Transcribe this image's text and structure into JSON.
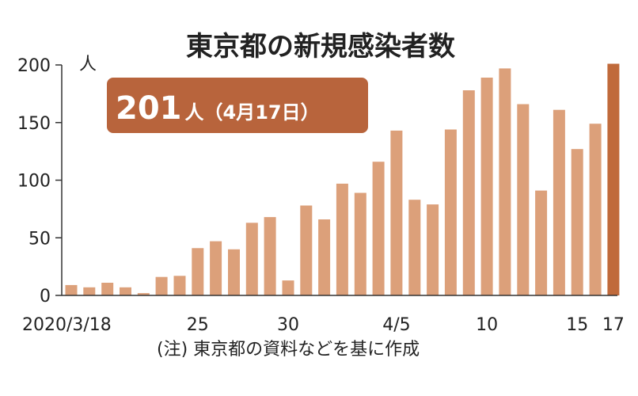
{
  "chart_data": {
    "type": "bar",
    "title": "東京都の新規感染者数",
    "unit": "人",
    "ylim": [
      0,
      200
    ],
    "yticks": [
      0,
      50,
      100,
      150,
      200
    ],
    "grid": false,
    "values": [
      9,
      7,
      11,
      7,
      2,
      16,
      17,
      41,
      47,
      40,
      63,
      68,
      13,
      78,
      66,
      97,
      89,
      116,
      143,
      83,
      79,
      144,
      178,
      189,
      197,
      166,
      91,
      161,
      127,
      149,
      201
    ],
    "xtick_labels": [
      {
        "index": 0,
        "label": "2020/3/18"
      },
      {
        "index": 7,
        "label": "25"
      },
      {
        "index": 12,
        "label": "30"
      },
      {
        "index": 18,
        "label": "4/5"
      },
      {
        "index": 23,
        "label": "10"
      },
      {
        "index": 28,
        "label": "15"
      },
      {
        "index": 30,
        "label": "17"
      }
    ],
    "highlight_index": 30,
    "callout": {
      "value": "201",
      "suffix": "人（4月17日）"
    },
    "note": "(注) 東京都の資料などを基に作成",
    "colors": {
      "bar": "#dca07a",
      "highlight": "#c06a3b",
      "callout_bg": "#b8643c",
      "axis": "#333333"
    }
  }
}
